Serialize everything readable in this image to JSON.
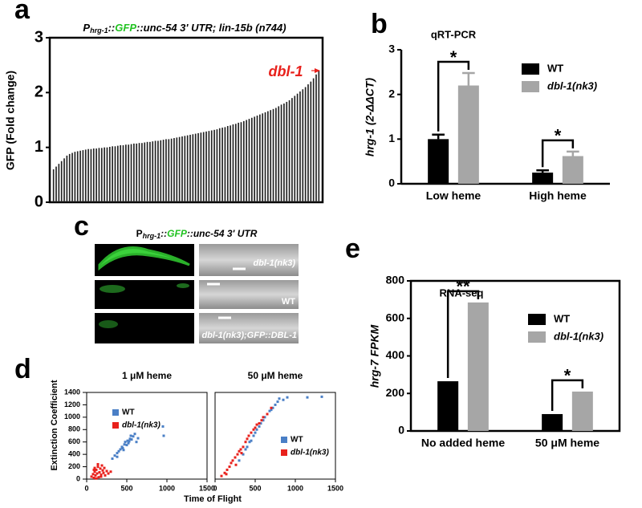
{
  "panel_labels": [
    "a",
    "b",
    "c",
    "d",
    "e"
  ],
  "image_panel": {
    "title_parts": [
      "P",
      "hrg-1",
      "::",
      "GFP",
      "::unc-54 3' UTR"
    ],
    "labels": [
      "dbl-1(nk3)",
      "WT",
      "dbl-1(nk3);GFP::DBL-1"
    ]
  },
  "chart_data": [
    {
      "type": "bar",
      "title_parts": [
        "P",
        "hrg-1",
        "::",
        "GFP",
        "::unc-54 3' UTR; lin-15b (n744)"
      ],
      "ylabel": "GFP (Fold change)",
      "annotation": "dbl-1",
      "color": "#222222",
      "ylim": [
        0,
        3
      ],
      "yticks": [
        0,
        1,
        2,
        3
      ],
      "frame": true,
      "values": [
        0.6,
        0.65,
        0.7,
        0.75,
        0.8,
        0.85,
        0.88,
        0.9,
        0.92,
        0.93,
        0.94,
        0.95,
        0.96,
        0.97,
        0.97,
        0.98,
        0.98,
        0.99,
        0.99,
        1.0,
        1.0,
        1.01,
        1.02,
        1.02,
        1.03,
        1.04,
        1.04,
        1.05,
        1.05,
        1.06,
        1.07,
        1.07,
        1.08,
        1.08,
        1.09,
        1.1,
        1.1,
        1.11,
        1.12,
        1.12,
        1.13,
        1.14,
        1.15,
        1.15,
        1.16,
        1.17,
        1.18,
        1.19,
        1.2,
        1.21,
        1.22,
        1.23,
        1.24,
        1.25,
        1.26,
        1.27,
        1.28,
        1.29,
        1.3,
        1.31,
        1.32,
        1.33,
        1.35,
        1.36,
        1.37,
        1.39,
        1.4,
        1.42,
        1.43,
        1.45,
        1.46,
        1.48,
        1.5,
        1.52,
        1.54,
        1.56,
        1.58,
        1.6,
        1.62,
        1.64,
        1.66,
        1.68,
        1.7,
        1.72,
        1.75,
        1.78,
        1.8,
        1.83,
        1.86,
        1.9,
        1.94,
        1.98,
        2.02,
        2.06,
        2.1,
        2.15,
        2.2,
        2.26,
        2.33,
        2.4
      ]
    },
    {
      "type": "grouped_bar",
      "title": "qRT-PCR",
      "ylabel": "hrg-1  (2-ΔΔCT)",
      "categories": [
        "Low heme",
        "High heme"
      ],
      "ylim": [
        0,
        3
      ],
      "yticks": [
        0,
        1,
        2,
        3
      ],
      "frame": false,
      "significance": [
        "*",
        "*"
      ],
      "series": [
        {
          "name": "WT",
          "color": "#000000",
          "values": [
            1.0,
            0.25
          ],
          "errors": [
            0.1,
            0.05
          ]
        },
        {
          "name": "dbl-1(nk3)",
          "color": "#a6a6a6",
          "values": [
            2.2,
            0.62
          ],
          "errors": [
            0.28,
            0.1
          ]
        }
      ]
    },
    {
      "type": "scatter",
      "title": "1 μM heme",
      "xlabel": "Time of Flight",
      "ylabel": "Extinction Coefficient",
      "xlim": [
        0,
        1500
      ],
      "xticks": [
        0,
        500,
        1000,
        1500
      ],
      "ylim": [
        0,
        1400
      ],
      "yticks": [
        0,
        200,
        400,
        600,
        800,
        1000,
        1200,
        1400
      ],
      "frame": true,
      "series": [
        {
          "name": "WT",
          "color": "#4a7fc6",
          "x": [
            320,
            350,
            380,
            400,
            420,
            440,
            450,
            470,
            480,
            500,
            510,
            520,
            540,
            550,
            560,
            580,
            600,
            620,
            640,
            950,
            960,
            380,
            460,
            530
          ],
          "values": [
            330,
            380,
            420,
            450,
            480,
            520,
            500,
            560,
            600,
            550,
            620,
            580,
            650,
            700,
            640,
            690,
            730,
            600,
            660,
            850,
            700,
            360,
            470,
            610
          ]
        },
        {
          "name": "dbl-1(nk3)",
          "color": "#e8211c",
          "x": [
            60,
            80,
            90,
            100,
            110,
            120,
            130,
            140,
            150,
            160,
            170,
            180,
            190,
            200,
            210,
            220,
            230,
            250,
            270,
            300,
            100,
            140,
            180,
            120,
            90
          ],
          "values": [
            40,
            80,
            20,
            120,
            60,
            150,
            90,
            200,
            30,
            110,
            170,
            70,
            220,
            140,
            100,
            180,
            60,
            130,
            90,
            120,
            180,
            240,
            40,
            10,
            150
          ]
        }
      ]
    },
    {
      "type": "scatter",
      "title": "50 μM heme",
      "xlim": [
        0,
        1500
      ],
      "xticks": [
        0,
        500,
        1000,
        1500
      ],
      "ylim": [
        0,
        1400
      ],
      "frame": true,
      "series": [
        {
          "name": "WT",
          "color": "#4a7fc6",
          "x": [
            300,
            350,
            380,
            400,
            430,
            450,
            480,
            500,
            520,
            550,
            570,
            600,
            620,
            650,
            680,
            700,
            720,
            750,
            780,
            800,
            850,
            900,
            1150,
            1330
          ],
          "values": [
            300,
            400,
            480,
            520,
            600,
            620,
            700,
            750,
            800,
            850,
            900,
            950,
            1000,
            1050,
            1100,
            1120,
            1150,
            1200,
            1250,
            1300,
            1280,
            1320,
            1320,
            1330
          ]
        },
        {
          "name": "dbl-1(nk3)",
          "color": "#e8211c",
          "x": [
            80,
            120,
            150,
            180,
            200,
            220,
            250,
            280,
            300,
            320,
            350,
            380,
            400,
            420,
            450,
            480,
            500,
            520,
            550,
            580,
            600,
            650,
            700,
            140,
            260,
            330
          ],
          "values": [
            50,
            100,
            150,
            200,
            260,
            300,
            350,
            400,
            450,
            480,
            520,
            600,
            650,
            700,
            750,
            800,
            830,
            880,
            900,
            950,
            1000,
            1050,
            1150,
            80,
            230,
            420
          ]
        }
      ]
    },
    {
      "type": "grouped_bar",
      "title": "RNA-seq",
      "ylabel": "hrg-7 FPKM",
      "categories": [
        "No added heme",
        "50 μM heme"
      ],
      "ylim": [
        0,
        800
      ],
      "yticks": [
        0,
        200,
        400,
        600,
        800
      ],
      "frame": true,
      "significance": [
        "**",
        "*"
      ],
      "series": [
        {
          "name": "WT",
          "color": "#000000",
          "values": [
            265,
            90
          ]
        },
        {
          "name": "dbl-1(nk3)",
          "color": "#a6a6a6",
          "values": [
            685,
            210
          ]
        }
      ]
    }
  ]
}
